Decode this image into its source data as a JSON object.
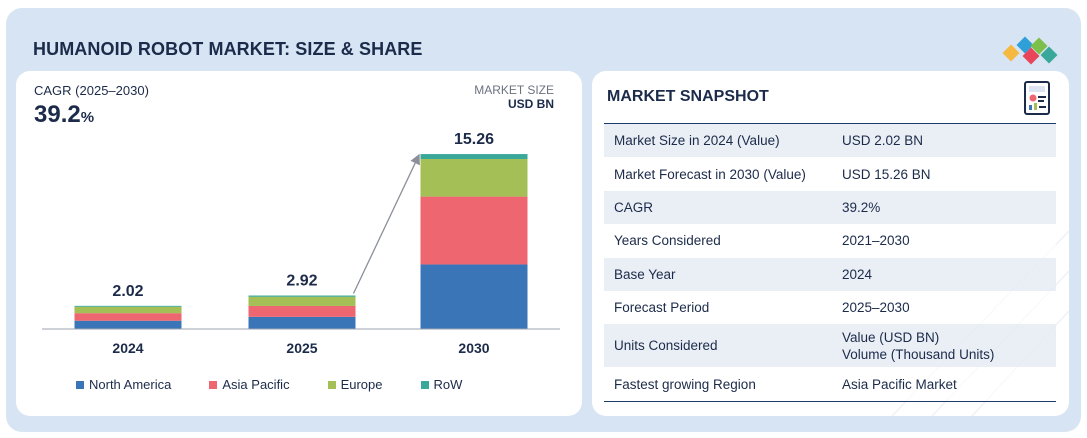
{
  "header": {
    "title": "HUMANOID ROBOT MARKET: SIZE & SHARE",
    "logo_colors": [
      "#f5b841",
      "#e9455a",
      "#2f9fd8",
      "#7cc04b"
    ]
  },
  "chart_panel": {
    "cagr_label": "CAGR (2025–2030)",
    "cagr_value": "39.2",
    "cagr_unit": "%",
    "unit_line1": "MARKET SIZE",
    "unit_line2": "USD BN"
  },
  "chart_data": {
    "type": "bar",
    "stacked": true,
    "categories": [
      "2024",
      "2025",
      "2030"
    ],
    "totals": [
      "2.02",
      "2.92",
      "15.26"
    ],
    "series": [
      {
        "name": "North America",
        "color": "#3a76b7",
        "values": [
          0.72,
          1.06,
          5.63
        ]
      },
      {
        "name": "Asia Pacific",
        "color": "#ee6670",
        "values": [
          0.66,
          0.95,
          5.92
        ]
      },
      {
        "name": "Europe",
        "color": "#a3bf55",
        "values": [
          0.56,
          0.8,
          3.28
        ]
      },
      {
        "name": "RoW",
        "color": "#39a89a",
        "values": [
          0.08,
          0.11,
          0.43
        ]
      }
    ],
    "ylim": [
      0,
      16.4
    ],
    "grid": false,
    "legend_position": "bottom",
    "annotation": "growth-arrow"
  },
  "snapshot": {
    "title": "MARKET SNAPSHOT",
    "rows": [
      {
        "key": "Market Size in 2024 (Value)",
        "value": "USD 2.02 BN"
      },
      {
        "key": "Market Forecast in 2030 (Value)",
        "value": "USD 15.26 BN"
      },
      {
        "key": "CAGR",
        "value": "39.2%"
      },
      {
        "key": "Years Considered",
        "value": "2021–2030"
      },
      {
        "key": "Base Year",
        "value": "2024"
      },
      {
        "key": "Forecast Period",
        "value": "2025–2030"
      },
      {
        "key": "Units Considered",
        "value": "Value (USD BN)",
        "value2": "Volume (Thousand Units)"
      },
      {
        "key": "Fastest growing Region",
        "value": "Asia Pacific Market"
      }
    ]
  }
}
